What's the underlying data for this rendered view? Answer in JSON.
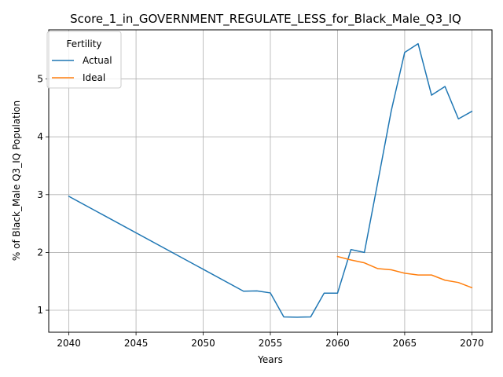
{
  "chart_data": {
    "type": "line",
    "title": "Score_1_in_GOVERNMENT_REGULATE_LESS_for_Black_Male_Q3_IQ",
    "xlabel": "Years",
    "ylabel": "% of Black_Male Q3_IQ Population",
    "xlim": [
      2038.5,
      2071.5
    ],
    "ylim": [
      0.62,
      5.85
    ],
    "xticks": [
      2040,
      2045,
      2050,
      2055,
      2060,
      2065,
      2070
    ],
    "yticks": [
      1,
      2,
      3,
      4,
      5
    ],
    "grid": true,
    "legend": {
      "title": "Fertility",
      "placement": "top-left"
    },
    "series": [
      {
        "name": "Actual",
        "color": "#1f77b4",
        "x": [
          2040,
          2053,
          2054,
          2055,
          2056,
          2057,
          2058,
          2059,
          2060,
          2061,
          2062,
          2063,
          2064,
          2065,
          2066,
          2067,
          2068,
          2069,
          2070
        ],
        "y": [
          2.97,
          1.33,
          1.335,
          1.3,
          0.885,
          0.88,
          0.885,
          1.295,
          1.295,
          2.05,
          2.0,
          3.22,
          4.45,
          5.46,
          5.61,
          4.72,
          4.87,
          4.31,
          4.44
        ]
      },
      {
        "name": "Ideal",
        "color": "#ff7f0e",
        "x": [
          2060,
          2061,
          2062,
          2063,
          2064,
          2065,
          2066,
          2067,
          2068,
          2069,
          2070
        ],
        "y": [
          1.93,
          1.87,
          1.82,
          1.72,
          1.7,
          1.64,
          1.61,
          1.61,
          1.52,
          1.48,
          1.39
        ]
      }
    ]
  }
}
